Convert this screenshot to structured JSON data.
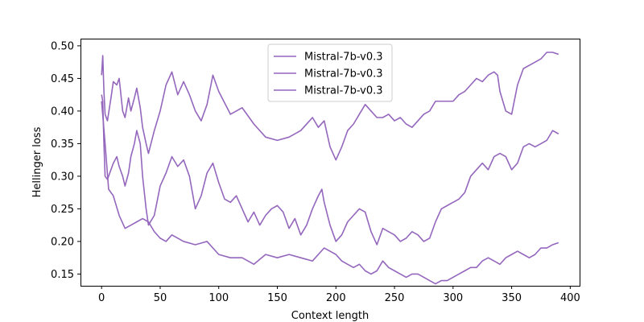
{
  "chart_data": {
    "type": "line",
    "title": "",
    "xlabel": "Context length",
    "ylabel": "Hellinger loss",
    "xlim": [
      -18,
      408
    ],
    "ylim": [
      0.132,
      0.511
    ],
    "x_ticks": [
      0,
      50,
      100,
      150,
      200,
      250,
      300,
      350,
      400
    ],
    "y_ticks": [
      0.15,
      0.2,
      0.25,
      0.3,
      0.35,
      0.4,
      0.45,
      0.5
    ],
    "x_tick_labels": [
      "0",
      "50",
      "100",
      "150",
      "200",
      "250",
      "300",
      "350",
      "400"
    ],
    "y_tick_labels": [
      "0.15",
      "0.20",
      "0.25",
      "0.30",
      "0.35",
      "0.40",
      "0.45",
      "0.50"
    ],
    "grid": false,
    "legend_position": "upper-center",
    "series": [
      {
        "name": "Mistral-7b-v0.3",
        "color": "#9467bd",
        "x": [
          0,
          1,
          2,
          3,
          5,
          8,
          10,
          13,
          15,
          18,
          20,
          23,
          25,
          28,
          30,
          33,
          35,
          38,
          40,
          45,
          50,
          55,
          60,
          65,
          70,
          75,
          80,
          85,
          90,
          95,
          100,
          110,
          120,
          130,
          140,
          150,
          160,
          170,
          180,
          185,
          190,
          195,
          200,
          205,
          210,
          215,
          220,
          225,
          230,
          235,
          240,
          245,
          250,
          255,
          260,
          265,
          270,
          275,
          280,
          285,
          290,
          300,
          305,
          310,
          315,
          320,
          325,
          330,
          335,
          338,
          340,
          345,
          350,
          355,
          360,
          365,
          370,
          375,
          380,
          385,
          390
        ],
        "y": [
          0.455,
          0.485,
          0.43,
          0.395,
          0.385,
          0.42,
          0.445,
          0.44,
          0.45,
          0.4,
          0.39,
          0.42,
          0.4,
          0.42,
          0.435,
          0.405,
          0.375,
          0.35,
          0.335,
          0.37,
          0.4,
          0.44,
          0.46,
          0.425,
          0.445,
          0.425,
          0.4,
          0.385,
          0.41,
          0.455,
          0.43,
          0.395,
          0.405,
          0.38,
          0.36,
          0.355,
          0.36,
          0.37,
          0.39,
          0.375,
          0.385,
          0.345,
          0.325,
          0.345,
          0.37,
          0.38,
          0.395,
          0.41,
          0.4,
          0.39,
          0.39,
          0.395,
          0.385,
          0.39,
          0.38,
          0.375,
          0.385,
          0.395,
          0.4,
          0.415,
          0.415,
          0.415,
          0.425,
          0.43,
          0.44,
          0.45,
          0.445,
          0.455,
          0.46,
          0.455,
          0.43,
          0.4,
          0.395,
          0.44,
          0.465,
          0.47,
          0.475,
          0.48,
          0.49,
          0.49,
          0.487
        ]
      },
      {
        "name": "Mistral-7b-v0.3",
        "color": "#9467bd",
        "x": [
          0,
          1,
          2,
          3,
          5,
          8,
          10,
          13,
          15,
          18,
          20,
          23,
          25,
          28,
          30,
          33,
          35,
          38,
          40,
          45,
          50,
          55,
          60,
          65,
          70,
          75,
          80,
          85,
          90,
          95,
          100,
          105,
          110,
          115,
          120,
          125,
          130,
          135,
          140,
          145,
          150,
          155,
          160,
          165,
          170,
          175,
          180,
          185,
          188,
          190,
          195,
          200,
          205,
          210,
          215,
          220,
          225,
          230,
          235,
          240,
          245,
          250,
          255,
          260,
          265,
          270,
          275,
          280,
          285,
          290,
          295,
          300,
          305,
          310,
          315,
          320,
          325,
          330,
          335,
          340,
          345,
          350,
          355,
          360,
          365,
          370,
          375,
          380,
          385,
          390
        ],
        "y": [
          0.425,
          0.415,
          0.35,
          0.3,
          0.295,
          0.31,
          0.32,
          0.33,
          0.315,
          0.3,
          0.285,
          0.305,
          0.33,
          0.35,
          0.37,
          0.35,
          0.3,
          0.25,
          0.225,
          0.24,
          0.285,
          0.305,
          0.33,
          0.315,
          0.325,
          0.3,
          0.25,
          0.27,
          0.305,
          0.32,
          0.29,
          0.265,
          0.26,
          0.27,
          0.25,
          0.23,
          0.245,
          0.225,
          0.24,
          0.25,
          0.255,
          0.245,
          0.22,
          0.235,
          0.21,
          0.225,
          0.25,
          0.27,
          0.28,
          0.26,
          0.225,
          0.2,
          0.21,
          0.23,
          0.24,
          0.25,
          0.245,
          0.215,
          0.195,
          0.22,
          0.215,
          0.21,
          0.2,
          0.205,
          0.215,
          0.21,
          0.2,
          0.205,
          0.23,
          0.25,
          0.255,
          0.26,
          0.265,
          0.275,
          0.3,
          0.31,
          0.32,
          0.31,
          0.33,
          0.335,
          0.33,
          0.31,
          0.32,
          0.345,
          0.35,
          0.345,
          0.35,
          0.355,
          0.37,
          0.365
        ]
      },
      {
        "name": "Mistral-7b-v0.3",
        "color": "#9467bd",
        "x": [
          0,
          3,
          6,
          10,
          15,
          20,
          25,
          30,
          35,
          40,
          45,
          50,
          55,
          60,
          70,
          80,
          90,
          100,
          110,
          120,
          130,
          140,
          150,
          160,
          170,
          180,
          190,
          195,
          200,
          205,
          210,
          215,
          220,
          225,
          230,
          235,
          240,
          245,
          250,
          255,
          260,
          265,
          270,
          275,
          280,
          285,
          290,
          295,
          300,
          305,
          310,
          315,
          320,
          325,
          330,
          335,
          340,
          345,
          350,
          355,
          360,
          365,
          370,
          375,
          380,
          385,
          390
        ],
        "y": [
          0.415,
          0.35,
          0.28,
          0.27,
          0.24,
          0.22,
          0.225,
          0.23,
          0.235,
          0.23,
          0.215,
          0.205,
          0.2,
          0.21,
          0.2,
          0.195,
          0.2,
          0.18,
          0.175,
          0.175,
          0.165,
          0.18,
          0.175,
          0.18,
          0.175,
          0.17,
          0.19,
          0.185,
          0.18,
          0.17,
          0.165,
          0.16,
          0.165,
          0.155,
          0.15,
          0.155,
          0.17,
          0.16,
          0.155,
          0.15,
          0.145,
          0.15,
          0.15,
          0.145,
          0.14,
          0.135,
          0.14,
          0.14,
          0.145,
          0.15,
          0.155,
          0.16,
          0.16,
          0.17,
          0.175,
          0.17,
          0.165,
          0.175,
          0.18,
          0.185,
          0.18,
          0.175,
          0.18,
          0.19,
          0.19,
          0.195,
          0.198
        ]
      }
    ]
  }
}
